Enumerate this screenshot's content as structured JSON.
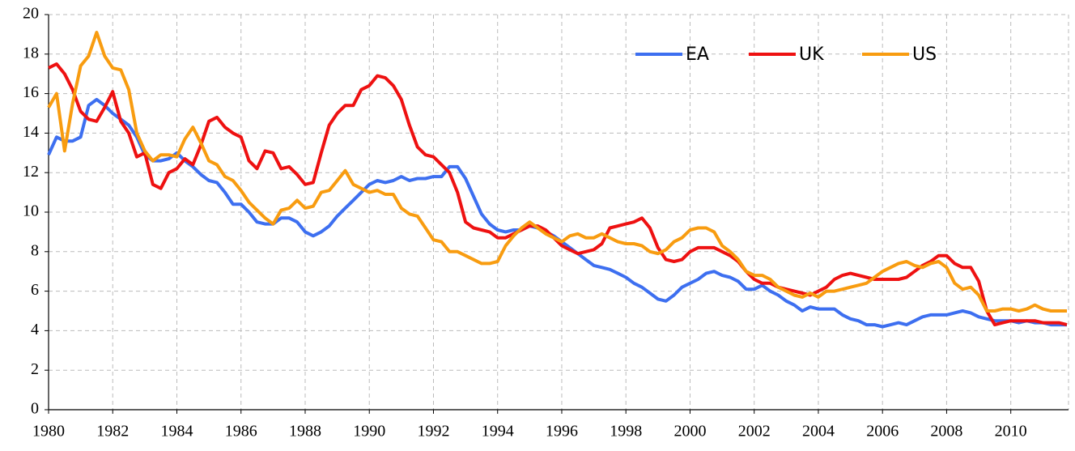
{
  "chart_data": {
    "type": "line",
    "x": [
      1980,
      1980.25,
      1980.5,
      1980.75,
      1981,
      1981.25,
      1981.5,
      1981.75,
      1982,
      1982.25,
      1982.5,
      1982.75,
      1983,
      1983.25,
      1983.5,
      1983.75,
      1984,
      1984.25,
      1984.5,
      1984.75,
      1985,
      1985.25,
      1985.5,
      1985.75,
      1986,
      1986.25,
      1986.5,
      1986.75,
      1987,
      1987.25,
      1987.5,
      1987.75,
      1988,
      1988.25,
      1988.5,
      1988.75,
      1989,
      1989.25,
      1989.5,
      1989.75,
      1990,
      1990.25,
      1990.5,
      1990.75,
      1991,
      1991.25,
      1991.5,
      1991.75,
      1992,
      1992.25,
      1992.5,
      1992.75,
      1993,
      1993.25,
      1993.5,
      1993.75,
      1994,
      1994.25,
      1994.5,
      1994.75,
      1995,
      1995.25,
      1995.5,
      1995.75,
      1996,
      1996.25,
      1996.5,
      1996.75,
      1997,
      1997.25,
      1997.5,
      1997.75,
      1998,
      1998.25,
      1998.5,
      1998.75,
      1999,
      1999.25,
      1999.5,
      1999.75,
      2000,
      2000.25,
      2000.5,
      2000.75,
      2001,
      2001.25,
      2001.5,
      2001.75,
      2002,
      2002.25,
      2002.5,
      2002.75,
      2003,
      2003.25,
      2003.5,
      2003.75,
      2004,
      2004.25,
      2004.5,
      2004.75,
      2005,
      2005.25,
      2005.5,
      2005.75,
      2006,
      2006.25,
      2006.5,
      2006.75,
      2007,
      2007.25,
      2007.5,
      2007.75,
      2008,
      2008.25,
      2008.5,
      2008.75,
      2009,
      2009.25,
      2009.5,
      2009.75,
      2010,
      2010.25,
      2010.5,
      2010.75,
      2011,
      2011.25,
      2011.5,
      2011.75
    ],
    "series": [
      {
        "name": "EA",
        "color": "#3d6ff0",
        "values": [
          12.9,
          13.8,
          13.6,
          13.6,
          13.8,
          15.4,
          15.7,
          15.4,
          15.0,
          14.7,
          14.4,
          13.8,
          12.9,
          12.6,
          12.6,
          12.7,
          13.0,
          12.6,
          12.3,
          11.9,
          11.6,
          11.5,
          11.0,
          10.4,
          10.4,
          10.0,
          9.5,
          9.4,
          9.4,
          9.7,
          9.7,
          9.5,
          9.0,
          8.8,
          9.0,
          9.3,
          9.8,
          10.2,
          10.6,
          11.0,
          11.4,
          11.6,
          11.5,
          11.6,
          11.8,
          11.6,
          11.7,
          11.7,
          11.8,
          11.8,
          12.3,
          12.3,
          11.7,
          10.8,
          9.9,
          9.4,
          9.1,
          9.0,
          9.1,
          9.1,
          9.3,
          9.2,
          9.0,
          8.8,
          8.5,
          8.2,
          7.9,
          7.6,
          7.3,
          7.2,
          7.1,
          6.9,
          6.7,
          6.4,
          6.2,
          5.9,
          5.6,
          5.5,
          5.8,
          6.2,
          6.4,
          6.6,
          6.9,
          7.0,
          6.8,
          6.7,
          6.5,
          6.1,
          6.1,
          6.3,
          6.0,
          5.8,
          5.5,
          5.3,
          5.0,
          5.2,
          5.1,
          5.1,
          5.1,
          4.8,
          4.6,
          4.5,
          4.3,
          4.3,
          4.2,
          4.3,
          4.4,
          4.3,
          4.5,
          4.7,
          4.8,
          4.8,
          4.8,
          4.9,
          5.0,
          4.9,
          4.7,
          4.6,
          4.5,
          4.5,
          4.5,
          4.4,
          4.5,
          4.4,
          4.4,
          4.3,
          4.3,
          4.3
        ]
      },
      {
        "name": "UK",
        "color": "#ee1111",
        "values": [
          17.3,
          17.5,
          17.0,
          16.2,
          15.1,
          14.7,
          14.6,
          15.3,
          16.1,
          14.6,
          14.0,
          12.8,
          13.0,
          11.4,
          11.2,
          12.0,
          12.2,
          12.7,
          12.4,
          13.4,
          14.6,
          14.8,
          14.3,
          14.0,
          13.8,
          12.6,
          12.2,
          13.1,
          13.0,
          12.2,
          12.3,
          11.9,
          11.4,
          11.5,
          13.0,
          14.4,
          15.0,
          15.4,
          15.4,
          16.2,
          16.4,
          16.9,
          16.8,
          16.4,
          15.7,
          14.4,
          13.3,
          12.9,
          12.8,
          12.4,
          12.0,
          11.0,
          9.5,
          9.2,
          9.1,
          9.0,
          8.7,
          8.7,
          8.9,
          9.1,
          9.3,
          9.3,
          9.1,
          8.7,
          8.3,
          8.1,
          7.9,
          8.0,
          8.1,
          8.4,
          9.2,
          9.3,
          9.4,
          9.5,
          9.7,
          9.2,
          8.2,
          7.6,
          7.5,
          7.6,
          8.0,
          8.2,
          8.2,
          8.2,
          8.0,
          7.8,
          7.5,
          7.0,
          6.6,
          6.4,
          6.4,
          6.2,
          6.1,
          6.0,
          5.9,
          5.8,
          6.0,
          6.2,
          6.6,
          6.8,
          6.9,
          6.8,
          6.7,
          6.6,
          6.6,
          6.6,
          6.6,
          6.7,
          7.0,
          7.3,
          7.5,
          7.8,
          7.8,
          7.4,
          7.2,
          7.2,
          6.5,
          5.0,
          4.3,
          4.4,
          4.5,
          4.5,
          4.5,
          4.5,
          4.4,
          4.4,
          4.4,
          4.3
        ]
      },
      {
        "name": "US",
        "color": "#f89c10",
        "values": [
          15.3,
          16.0,
          13.1,
          15.5,
          17.4,
          17.9,
          19.1,
          17.9,
          17.3,
          17.2,
          16.2,
          14.0,
          13.1,
          12.6,
          12.9,
          12.9,
          12.8,
          13.7,
          14.3,
          13.5,
          12.6,
          12.4,
          11.8,
          11.6,
          11.1,
          10.5,
          10.1,
          9.7,
          9.4,
          10.1,
          10.2,
          10.6,
          10.2,
          10.3,
          11.0,
          11.1,
          11.6,
          12.1,
          11.4,
          11.2,
          11.0,
          11.1,
          10.9,
          10.9,
          10.2,
          9.9,
          9.8,
          9.2,
          8.6,
          8.5,
          8.0,
          8.0,
          7.8,
          7.6,
          7.4,
          7.4,
          7.5,
          8.3,
          8.8,
          9.2,
          9.5,
          9.2,
          8.9,
          8.7,
          8.5,
          8.8,
          8.9,
          8.7,
          8.7,
          8.9,
          8.7,
          8.5,
          8.4,
          8.4,
          8.3,
          8.0,
          7.9,
          8.1,
          8.5,
          8.7,
          9.1,
          9.2,
          9.2,
          9.0,
          8.3,
          8.0,
          7.6,
          7.0,
          6.8,
          6.8,
          6.6,
          6.2,
          6.0,
          5.8,
          5.7,
          5.9,
          5.7,
          6.0,
          6.0,
          6.1,
          6.2,
          6.3,
          6.4,
          6.7,
          7.0,
          7.2,
          7.4,
          7.5,
          7.3,
          7.2,
          7.4,
          7.5,
          7.2,
          6.4,
          6.1,
          6.2,
          5.8,
          5.0,
          5.0,
          5.1,
          5.1,
          5.0,
          5.1,
          5.3,
          5.1,
          5.0,
          5.0,
          5.0
        ]
      }
    ],
    "xlim": [
      1980,
      2011.8
    ],
    "xticks": [
      1980,
      1982,
      1984,
      1986,
      1988,
      1990,
      1992,
      1994,
      1996,
      1998,
      2000,
      2002,
      2004,
      2006,
      2008,
      2010
    ],
    "ylim": [
      0,
      20
    ],
    "yticks": [
      0,
      2,
      4,
      6,
      8,
      10,
      12,
      14,
      16,
      18,
      20
    ],
    "grid": true,
    "legend": "upper right"
  }
}
